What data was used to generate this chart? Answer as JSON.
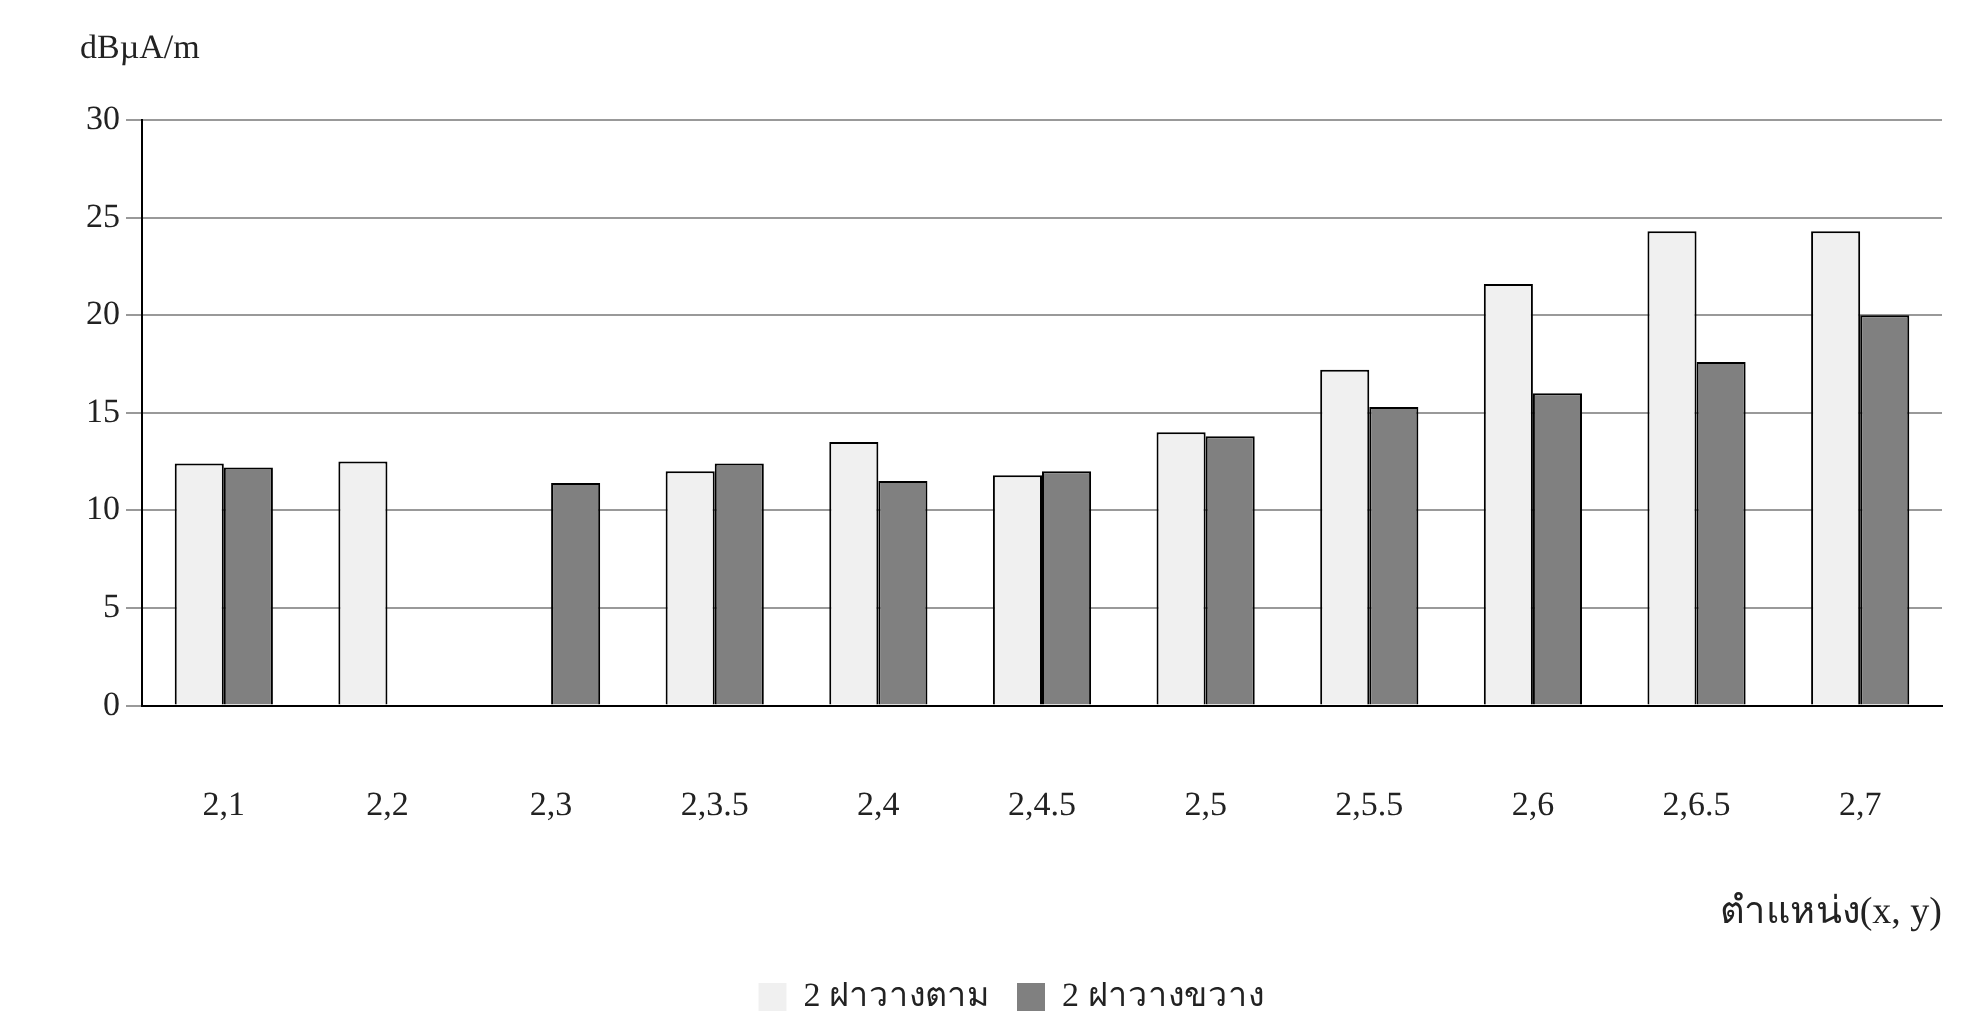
{
  "chart_data": {
    "type": "bar",
    "ylabel": "dBµA/m",
    "xlabel": "ตำแหน่ง(x, y)",
    "categories": [
      "2,1",
      "2,2",
      "2,3",
      "2,3.5",
      "2,4",
      "2,4.5",
      "2,5",
      "2,5.5",
      "2,6",
      "2,6.5",
      "2,7"
    ],
    "series": [
      {
        "name": "2 ฝาวางตาม",
        "color": "#f0f0f0",
        "values": [
          12.4,
          12.5,
          null,
          12.0,
          13.5,
          11.8,
          14.0,
          17.2,
          21.6,
          24.3,
          24.3
        ]
      },
      {
        "name": "2 ฝาวางขวาง",
        "color": "#808080",
        "values": [
          12.2,
          null,
          11.4,
          12.4,
          11.5,
          12.0,
          13.8,
          15.3,
          16.0,
          17.6,
          20.0
        ]
      }
    ],
    "ylim": [
      0,
      30
    ],
    "yticks": [
      0,
      5,
      10,
      15,
      20,
      25,
      30
    ],
    "grid": "y",
    "legend": "bottom"
  }
}
